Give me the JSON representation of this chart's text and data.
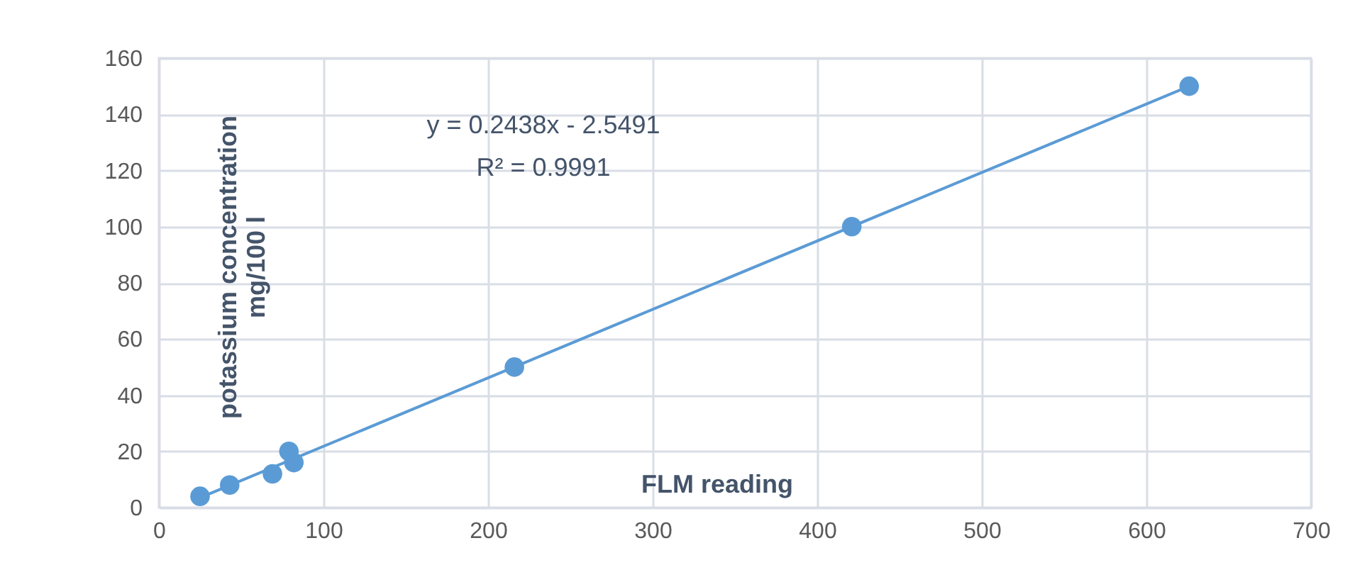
{
  "chart_data": {
    "type": "scatter",
    "xlabel": "FLM reading",
    "ylabel": "potassium concentration\nmg/100 l",
    "annotations": [
      "y = 0.2438x - 2.5491",
      "R² = 0.9991"
    ],
    "x": [
      25,
      43,
      69,
      79,
      82,
      216,
      421,
      626
    ],
    "series": [
      {
        "color": "#5b9bd5",
        "values": [
          4,
          8,
          12,
          20,
          16,
          50,
          100,
          150
        ],
        "marker": "circle"
      },
      {
        "type": "line",
        "color": "#5b9bd5",
        "x": [
          25,
          626
        ],
        "values": [
          3.5,
          150
        ],
        "line_style": "solid",
        "marker": "none"
      }
    ],
    "xlim": [
      0,
      700
    ],
    "xticks": [
      0,
      100,
      200,
      300,
      400,
      500,
      600,
      700
    ],
    "ylim": [
      0,
      160
    ],
    "yticks": [
      0,
      20,
      40,
      60,
      80,
      100,
      120,
      140,
      160
    ],
    "grid": true
  }
}
